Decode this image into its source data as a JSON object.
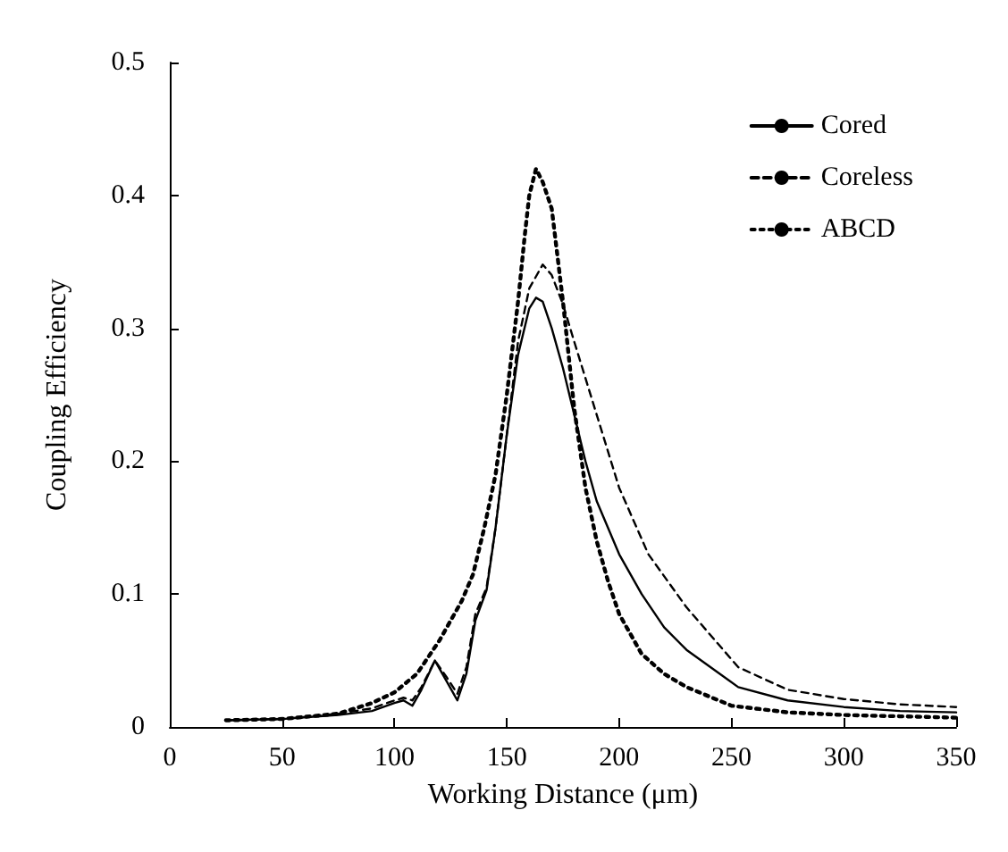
{
  "chart_data": {
    "type": "line",
    "xlabel": "Working Distance (μm)",
    "ylabel": "Coupling Efficiency",
    "xlim": [
      0,
      350
    ],
    "xticks": [
      0,
      50,
      100,
      150,
      200,
      250,
      300,
      350
    ],
    "ylim": [
      0,
      0.5
    ],
    "yticks": [
      0,
      0.1,
      0.2,
      0.3,
      0.4,
      0.5
    ],
    "grid": false,
    "legend": "top right",
    "marker": "none",
    "series": [
      {
        "name": "Cored",
        "color": "#000000",
        "line_style": "solid",
        "x": [
          25,
          50,
          75,
          90,
          100,
          104,
          108,
          112,
          118,
          123,
          128,
          132,
          136,
          141,
          145,
          150,
          155,
          160,
          163,
          166,
          170,
          175,
          180,
          185,
          190,
          200,
          210,
          220,
          230,
          253,
          275,
          300,
          325,
          350
        ],
        "values": [
          0.005,
          0.006,
          0.009,
          0.012,
          0.018,
          0.02,
          0.016,
          0.028,
          0.05,
          0.035,
          0.02,
          0.04,
          0.08,
          0.103,
          0.15,
          0.22,
          0.28,
          0.315,
          0.323,
          0.32,
          0.3,
          0.27,
          0.235,
          0.2,
          0.17,
          0.13,
          0.1,
          0.075,
          0.058,
          0.03,
          0.02,
          0.015,
          0.012,
          0.011
        ]
      },
      {
        "name": "Coreless",
        "color": "#000000",
        "line_style": "dashed",
        "x": [
          25,
          50,
          75,
          90,
          100,
          104,
          108,
          112,
          118,
          123,
          128,
          132,
          136,
          141,
          145,
          150,
          155,
          160,
          166,
          170,
          175,
          180,
          190,
          200,
          213,
          230,
          253,
          275,
          300,
          325,
          350
        ],
        "values": [
          0.005,
          0.006,
          0.01,
          0.014,
          0.02,
          0.022,
          0.02,
          0.03,
          0.05,
          0.038,
          0.025,
          0.045,
          0.085,
          0.105,
          0.15,
          0.22,
          0.29,
          0.33,
          0.348,
          0.34,
          0.318,
          0.29,
          0.235,
          0.18,
          0.13,
          0.09,
          0.045,
          0.028,
          0.021,
          0.017,
          0.015
        ]
      },
      {
        "name": "ABCD",
        "color": "#000000",
        "line_style": "dotted",
        "x": [
          25,
          50,
          75,
          90,
          100,
          110,
          120,
          130,
          135,
          140,
          145,
          150,
          155,
          158,
          160,
          163,
          166,
          170,
          175,
          180,
          185,
          190,
          195,
          200,
          210,
          220,
          230,
          250,
          275,
          300,
          325,
          350
        ],
        "values": [
          0.005,
          0.006,
          0.01,
          0.018,
          0.026,
          0.04,
          0.065,
          0.095,
          0.115,
          0.15,
          0.19,
          0.25,
          0.32,
          0.37,
          0.4,
          0.42,
          0.41,
          0.39,
          0.32,
          0.24,
          0.18,
          0.14,
          0.11,
          0.085,
          0.055,
          0.04,
          0.03,
          0.016,
          0.011,
          0.009,
          0.008,
          0.007
        ]
      }
    ]
  }
}
